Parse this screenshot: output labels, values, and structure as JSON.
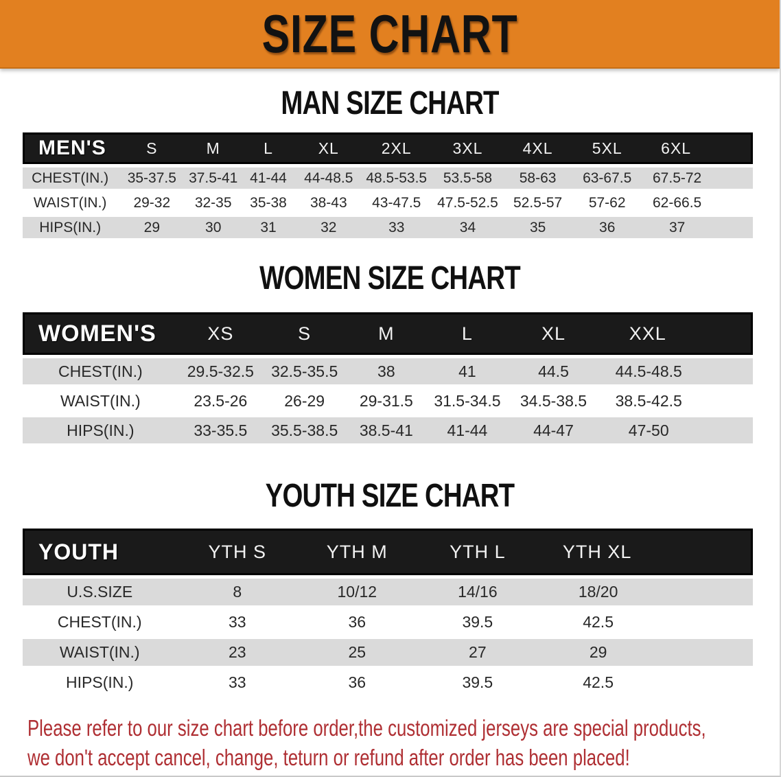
{
  "banner": {
    "title": "SIZE CHART"
  },
  "colors": {
    "banner_bg": "#E28020",
    "header_row_bg": "#1a1a1a",
    "stripe_row_bg": "#dadada",
    "disclaimer_red": "#AF2F33"
  },
  "sections": [
    {
      "id": "men",
      "heading": "MAN SIZE CHART",
      "corner_label": "MEN'S",
      "columns": [
        "S",
        "M",
        "L",
        "XL",
        "2XL",
        "3XL",
        "4XL",
        "5XL",
        "6XL"
      ],
      "rows": [
        {
          "label": "CHEST(IN.)",
          "values": [
            "35-37.5",
            "37.5-41",
            "41-44",
            "44-48.5",
            "48.5-53.5",
            "53.5-58",
            "58-63",
            "63-67.5",
            "67.5-72"
          ]
        },
        {
          "label": "WAIST(IN.)",
          "values": [
            "29-32",
            "32-35",
            "35-38",
            "38-43",
            "43-47.5",
            "47.5-52.5",
            "52.5-57",
            "57-62",
            "62-66.5"
          ]
        },
        {
          "label": "HIPS(IN.)",
          "values": [
            "29",
            "30",
            "31",
            "32",
            "33",
            "34",
            "35",
            "36",
            "37"
          ]
        }
      ]
    },
    {
      "id": "women",
      "heading": "WOMEN SIZE CHART",
      "corner_label": "WOMEN'S",
      "columns": [
        "XS",
        "S",
        "M",
        "L",
        "XL",
        "XXL"
      ],
      "rows": [
        {
          "label": "CHEST(IN.)",
          "values": [
            "29.5-32.5",
            "32.5-35.5",
            "38",
            "41",
            "44.5",
            "44.5-48.5"
          ]
        },
        {
          "label": "WAIST(IN.)",
          "values": [
            "23.5-26",
            "26-29",
            "29-31.5",
            "31.5-34.5",
            "34.5-38.5",
            "38.5-42.5"
          ]
        },
        {
          "label": "HIPS(IN.)",
          "values": [
            "33-35.5",
            "35.5-38.5",
            "38.5-41",
            "41-44",
            "44-47",
            "47-50"
          ]
        }
      ]
    },
    {
      "id": "youth",
      "heading": "YOUTH SIZE CHART",
      "corner_label": "YOUTH",
      "columns": [
        "YTH S",
        "YTH M",
        "YTH L",
        "YTH XL"
      ],
      "rows": [
        {
          "label": "U.S.SIZE",
          "values": [
            "8",
            "10/12",
            "14/16",
            "18/20"
          ]
        },
        {
          "label": "CHEST(IN.)",
          "values": [
            "33",
            "36",
            "39.5",
            "42.5"
          ]
        },
        {
          "label": "WAIST(IN.)",
          "values": [
            "23",
            "25",
            "27",
            "29"
          ]
        },
        {
          "label": "HIPS(IN.)",
          "values": [
            "33",
            "36",
            "39.5",
            "42.5"
          ]
        }
      ]
    }
  ],
  "disclaimer": {
    "line1": "Please refer to our size chart before order,the customized jerseys are special products,",
    "line2": "we don't accept cancel, change, teturn or refund after order has been placed!"
  }
}
